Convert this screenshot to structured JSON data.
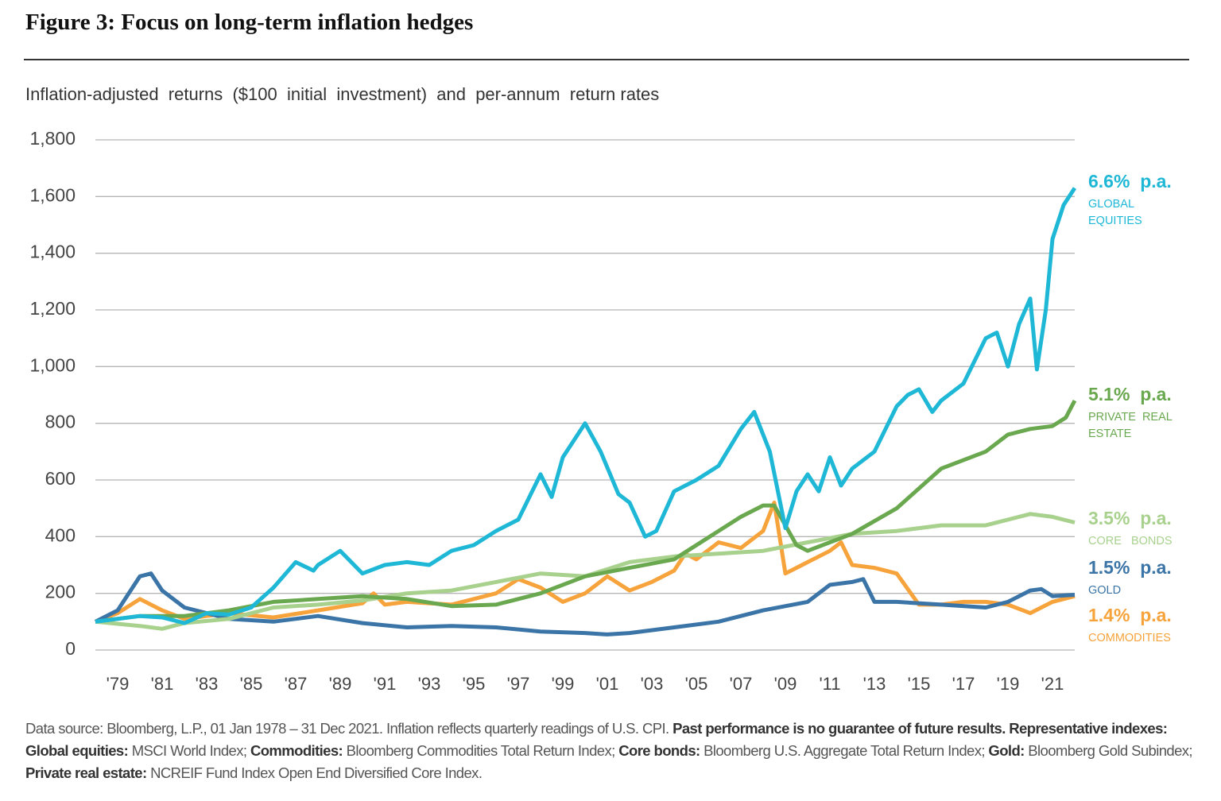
{
  "chart_data": {
    "type": "line",
    "title": "Figure 3: Focus on long-term inflation hedges",
    "subtitle": "Inflation-adjusted  returns  ($100  initial  investment)  and  per-annum  return rates",
    "xlim": [
      1978,
      2022
    ],
    "xticks": [
      {
        "value": 1979,
        "label": "'79"
      },
      {
        "value": 1981,
        "label": "'81"
      },
      {
        "value": 1983,
        "label": "'83"
      },
      {
        "value": 1985,
        "label": "'85"
      },
      {
        "value": 1987,
        "label": "'87"
      },
      {
        "value": 1989,
        "label": "'89"
      },
      {
        "value": 1991,
        "label": "'91"
      },
      {
        "value": 1993,
        "label": "'93"
      },
      {
        "value": 1995,
        "label": "'95"
      },
      {
        "value": 1997,
        "label": "'97"
      },
      {
        "value": 1999,
        "label": "'99"
      },
      {
        "value": 2001,
        "label": "'01"
      },
      {
        "value": 2003,
        "label": "'03"
      },
      {
        "value": 2005,
        "label": "'05"
      },
      {
        "value": 2007,
        "label": "'07"
      },
      {
        "value": 2009,
        "label": "'09"
      },
      {
        "value": 2011,
        "label": "'11"
      },
      {
        "value": 2013,
        "label": "'13"
      },
      {
        "value": 2015,
        "label": "'15"
      },
      {
        "value": 2017,
        "label": "'17"
      },
      {
        "value": 2019,
        "label": "'19"
      },
      {
        "value": 2021,
        "label": "'21"
      }
    ],
    "ylim": [
      0,
      1800
    ],
    "yticks": [
      0,
      200,
      400,
      600,
      800,
      {
        "value": 1000,
        "label": "1,000"
      },
      {
        "value": 1200,
        "label": "1,200"
      },
      {
        "value": 1400,
        "label": "1,400"
      },
      {
        "value": 1600,
        "label": "1,600"
      },
      {
        "value": 1800,
        "label": "1,800"
      }
    ],
    "grid": true,
    "series": [
      {
        "name": "GLOBAL EQUITIES",
        "label_lines": [
          "GLOBAL",
          "EQUITIES"
        ],
        "rate": "6.6%  p.a.",
        "color": "#1eb8d6",
        "x": [
          1978,
          1979,
          1980,
          1981,
          1982,
          1983,
          1984,
          1985,
          1986,
          1987,
          1987.8,
          1988,
          1989,
          1990,
          1991,
          1992,
          1993,
          1994,
          1995,
          1996,
          1997,
          1997.5,
          1998,
          1998.5,
          1999,
          2000,
          2000.7,
          2001.5,
          2002,
          2002.7,
          2003.2,
          2004,
          2005,
          2006,
          2007,
          2007.6,
          2008.3,
          2009,
          2009.5,
          2010,
          2010.5,
          2011,
          2011.5,
          2012,
          2013,
          2014,
          2014.5,
          2015,
          2015.6,
          2016,
          2017,
          2018,
          2018.5,
          2019,
          2019.5,
          2020,
          2020.3,
          2020.7,
          2021,
          2021.5,
          2022
        ],
        "values": [
          100,
          110,
          120,
          115,
          95,
          130,
          125,
          150,
          220,
          310,
          280,
          300,
          350,
          270,
          300,
          310,
          300,
          350,
          370,
          420,
          460,
          540,
          620,
          540,
          680,
          800,
          700,
          550,
          520,
          400,
          420,
          560,
          600,
          650,
          780,
          840,
          700,
          430,
          560,
          620,
          560,
          680,
          580,
          640,
          700,
          860,
          900,
          920,
          840,
          880,
          940,
          1100,
          1120,
          1000,
          1150,
          1240,
          990,
          1200,
          1450,
          1570,
          1630
        ]
      },
      {
        "name": "PRIVATE REAL ESTATE",
        "label_lines": [
          "PRIVATE  REAL",
          "ESTATE"
        ],
        "rate": "5.1%  p.a.",
        "color": "#6aa84f",
        "x": [
          1978,
          1980,
          1982,
          1984,
          1986,
          1988,
          1990,
          1992,
          1994,
          1996,
          1998,
          2000,
          2002,
          2004,
          2006,
          2007,
          2008,
          2008.5,
          2009.5,
          2010,
          2012,
          2014,
          2016,
          2018,
          2019,
          2020,
          2021,
          2021.6,
          2022
        ],
        "values": [
          100,
          120,
          120,
          140,
          170,
          180,
          190,
          180,
          155,
          160,
          200,
          260,
          290,
          320,
          420,
          470,
          510,
          510,
          370,
          350,
          410,
          500,
          640,
          700,
          760,
          780,
          790,
          820,
          880
        ]
      },
      {
        "name": "CORE BONDS",
        "label_lines": [
          "CORE   BONDS"
        ],
        "rate": "3.5%  p.a.",
        "color": "#a9d18e",
        "x": [
          1978,
          1980,
          1981,
          1982,
          1984,
          1986,
          1988,
          1990,
          1992,
          1994,
          1996,
          1998,
          2000,
          2002,
          2004,
          2006,
          2008,
          2010,
          2012,
          2014,
          2016,
          2018,
          2020,
          2021,
          2022
        ],
        "values": [
          100,
          85,
          75,
          95,
          110,
          150,
          160,
          175,
          200,
          210,
          240,
          270,
          260,
          310,
          330,
          340,
          350,
          380,
          410,
          420,
          440,
          440,
          480,
          470,
          450
        ]
      },
      {
        "name": "GOLD",
        "label_lines": [
          "GOLD"
        ],
        "rate": "1.5%  p.a.",
        "color": "#3b74a6",
        "x": [
          1978,
          1979,
          1980,
          1980.5,
          1981,
          1982,
          1983,
          1984,
          1986,
          1988,
          1990,
          1992,
          1994,
          1996,
          1998,
          2000,
          2001,
          2002,
          2004,
          2006,
          2008,
          2010,
          2011,
          2012,
          2012.5,
          2013,
          2014,
          2016,
          2018,
          2019,
          2020,
          2020.5,
          2021,
          2022
        ],
        "values": [
          100,
          140,
          260,
          270,
          210,
          150,
          130,
          110,
          100,
          120,
          95,
          80,
          85,
          80,
          65,
          60,
          55,
          60,
          80,
          100,
          140,
          170,
          230,
          240,
          250,
          170,
          170,
          160,
          150,
          170,
          210,
          215,
          190,
          195
        ]
      },
      {
        "name": "COMMODITIES",
        "label_lines": [
          "COMMODITIES"
        ],
        "rate": "1.4%  p.a.",
        "color": "#f7a33b",
        "x": [
          1978,
          1979,
          1980,
          1981,
          1982,
          1983,
          1984,
          1986,
          1988,
          1990,
          1990.5,
          1991,
          1992,
          1994,
          1996,
          1997,
          1998,
          1999,
          2000,
          2001,
          2002,
          2003,
          2004,
          2004.5,
          2005,
          2006,
          2007,
          2008,
          2008.5,
          2009,
          2010,
          2011,
          2011.5,
          2012,
          2013,
          2014,
          2015,
          2016,
          2017,
          2018,
          2019,
          2020,
          2021,
          2022
        ],
        "values": [
          100,
          130,
          180,
          140,
          110,
          120,
          130,
          115,
          140,
          165,
          200,
          160,
          170,
          160,
          200,
          250,
          220,
          170,
          200,
          260,
          210,
          240,
          280,
          340,
          320,
          380,
          360,
          420,
          520,
          270,
          310,
          350,
          380,
          300,
          290,
          270,
          160,
          160,
          170,
          170,
          160,
          130,
          170,
          190
        ]
      }
    ],
    "footnote": [
      {
        "text": "Data source: Bloomberg, L.P., 01 Jan 1978 – 31 Dec 2021. Inflation reflects quarterly readings of U.S. CPI. ",
        "bold": false
      },
      {
        "text": "Past performance is no guarantee of future results. Representative indexes: Global equities:",
        "bold": true
      },
      {
        "text": " MSCI World Index; ",
        "bold": false
      },
      {
        "text": "Commodities:",
        "bold": true
      },
      {
        "text": " Bloomberg Commodities Total Return Index; ",
        "bold": false
      },
      {
        "text": "Core bonds:",
        "bold": true
      },
      {
        "text": " Bloomberg U.S. Aggregate Total Return Index; ",
        "bold": false
      },
      {
        "text": "Gold:",
        "bold": true
      },
      {
        "text": " Bloomberg Gold Subindex; ",
        "bold": false
      },
      {
        "text": "Private real estate:",
        "bold": true
      },
      {
        "text": " NCREIF Fund Index Open End Diversified Core Index.",
        "bold": false
      }
    ]
  }
}
